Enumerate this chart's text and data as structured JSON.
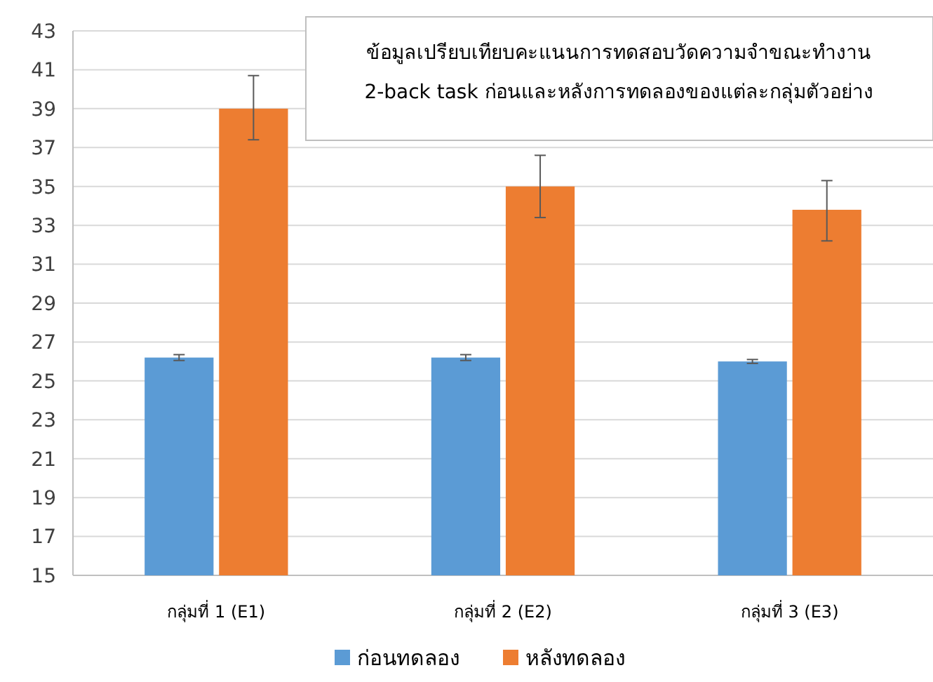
{
  "chart_data": {
    "type": "bar",
    "title": "ข้อมูลเปรียบเทียบคะแนนการทดสอบวัดความจำขณะทำงาน\n2-back task ก่อนและหลังการทดลองของแต่ละกลุ่มตัวอย่าง",
    "categories": [
      "กลุ่มที่ 1 (E1)",
      "กลุ่มที่ 2 (E2)",
      "กลุ่มที่ 3 (E3)"
    ],
    "series": [
      {
        "name": "ก่อนทดลอง",
        "color": "#5b9bd5",
        "values": [
          26.2,
          26.2,
          26.0
        ],
        "errors": [
          0.15,
          0.15,
          0.1
        ]
      },
      {
        "name": "หลังทดลอง",
        "color": "#ed7d31",
        "values": [
          39.0,
          35.0,
          33.8
        ],
        "errors": [
          [
            37.4,
            40.7
          ],
          [
            33.4,
            36.6
          ],
          [
            32.2,
            35.3
          ]
        ]
      }
    ],
    "ylim": [
      15,
      43
    ],
    "yticks": [
      15,
      17,
      19,
      21,
      23,
      25,
      27,
      29,
      31,
      33,
      35,
      37,
      39,
      41,
      43
    ],
    "grid": "y",
    "legend": "bottom"
  }
}
